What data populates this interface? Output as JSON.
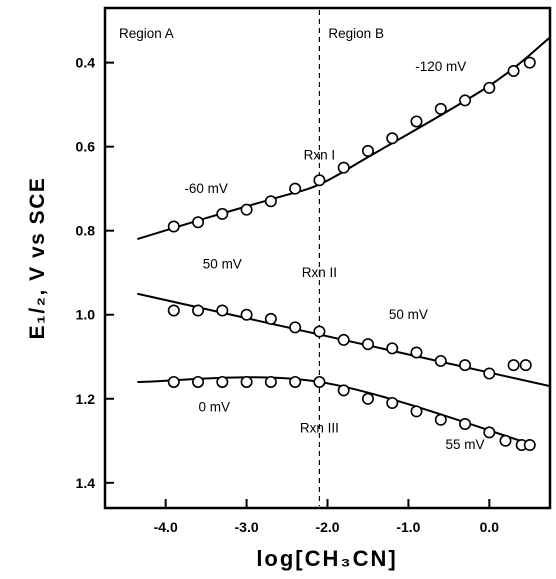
{
  "chart_data": {
    "type": "scatter",
    "xlabel": "log[CH₃CN]",
    "ylabel": "E₁/₂, V vs SCE",
    "xlim": [
      -4.75,
      0.75
    ],
    "ylim": [
      1.46,
      0.27
    ],
    "y_inverted": true,
    "x_ticks": [
      -4.0,
      -3.0,
      -2.0,
      -1.0,
      0.0
    ],
    "x_tick_labels": [
      "-4.0",
      "-3.0",
      "-2.0",
      "-1.0",
      "0.0"
    ],
    "y_ticks": [
      0.4,
      0.6,
      0.8,
      1.0,
      1.2,
      1.4
    ],
    "y_tick_labels": [
      "0.4",
      "0.6",
      "0.8",
      "1.0",
      "1.2",
      "1.4"
    ],
    "grid": false,
    "divider_x": -2.1,
    "region_labels": [
      "Region A",
      "Region B"
    ],
    "annotations": [
      {
        "text": "Rxn I",
        "x": -2.1,
        "y": 0.63
      },
      {
        "text": "-60 mV",
        "x": -3.5,
        "y": 0.71
      },
      {
        "text": "-120 mV",
        "x": -0.6,
        "y": 0.42
      },
      {
        "text": "Rxn II",
        "x": -2.1,
        "y": 0.91
      },
      {
        "text": "50 mV",
        "x": -3.3,
        "y": 0.89
      },
      {
        "text": "50 mV",
        "x": -1.0,
        "y": 1.01
      },
      {
        "text": "0 mV",
        "x": -3.4,
        "y": 1.23
      },
      {
        "text": "Rxn III",
        "x": -2.1,
        "y": 1.28
      },
      {
        "text": "55 mV",
        "x": -0.3,
        "y": 1.32
      }
    ],
    "series": [
      {
        "x": [
          -3.9,
          -3.6,
          -3.3,
          -3.0,
          -2.7,
          -2.4,
          -2.1,
          -1.8,
          -1.5,
          -1.2,
          -0.9,
          -0.6,
          -0.3,
          0.0,
          0.3,
          0.5
        ],
        "y": [
          0.79,
          0.78,
          0.76,
          0.75,
          0.73,
          0.7,
          0.68,
          0.65,
          0.61,
          0.58,
          0.54,
          0.51,
          0.49,
          0.46,
          0.42,
          0.4
        ],
        "fit": [
          [
            -4.35,
            0.82
          ],
          [
            -3.5,
            0.77
          ],
          [
            -2.6,
            0.72
          ],
          [
            -2.1,
            0.69
          ],
          [
            -1.5,
            0.625
          ],
          [
            0.0,
            0.455
          ],
          [
            0.75,
            0.34
          ]
        ]
      },
      {
        "x": [
          -3.9,
          -3.6,
          -3.3,
          -3.0,
          -2.7,
          -2.4,
          -2.1,
          -1.8,
          -1.5,
          -1.2,
          -0.9,
          -0.6,
          -0.3,
          0.0,
          0.3,
          0.45
        ],
        "y": [
          0.99,
          0.99,
          0.99,
          1.0,
          1.01,
          1.03,
          1.04,
          1.06,
          1.07,
          1.08,
          1.09,
          1.11,
          1.12,
          1.14,
          1.12,
          1.12
        ],
        "fit": [
          [
            -4.35,
            0.95
          ],
          [
            0.75,
            1.17
          ]
        ]
      },
      {
        "x": [
          -3.9,
          -3.6,
          -3.3,
          -3.0,
          -2.7,
          -2.4,
          -2.1,
          -1.8,
          -1.5,
          -1.2,
          -0.9,
          -0.6,
          -0.3,
          0.0,
          0.2,
          0.4,
          0.5
        ],
        "y": [
          1.16,
          1.16,
          1.16,
          1.16,
          1.16,
          1.16,
          1.16,
          1.18,
          1.2,
          1.21,
          1.23,
          1.25,
          1.26,
          1.28,
          1.3,
          1.31,
          1.31
        ],
        "fit": [
          [
            -4.35,
            1.16
          ],
          [
            -2.1,
            1.16
          ],
          [
            0.55,
            1.31
          ]
        ]
      }
    ]
  }
}
